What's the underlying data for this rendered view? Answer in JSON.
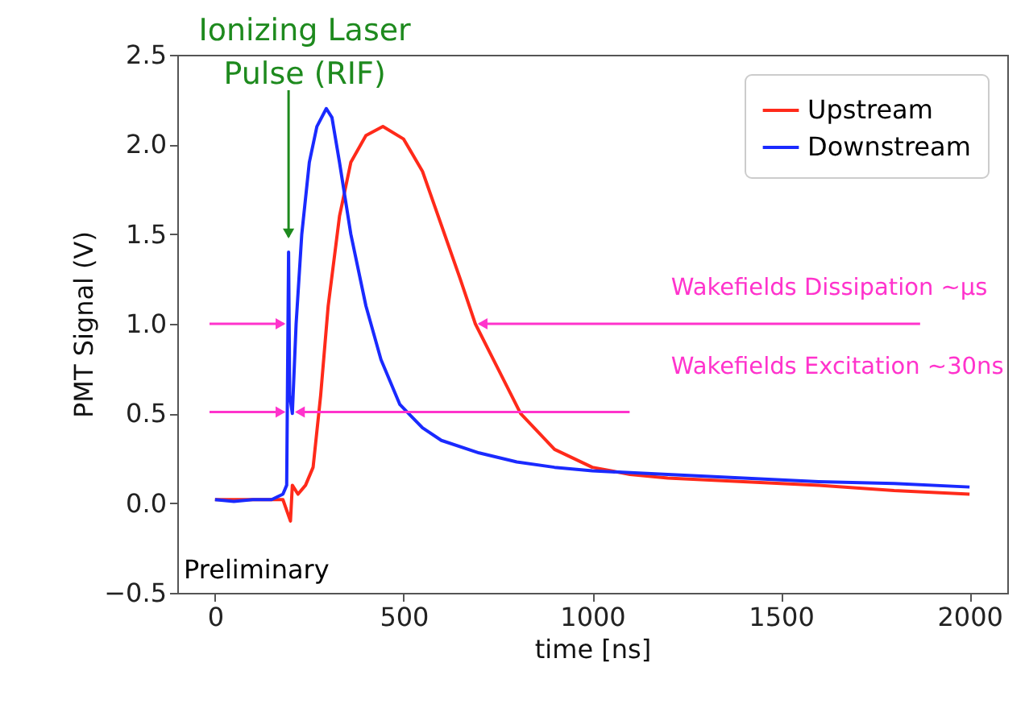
{
  "chart_data": {
    "type": "line",
    "xlabel": "time [ns]",
    "ylabel": "PMT Signal (V)",
    "xlim": [
      -100,
      2100
    ],
    "ylim": [
      -0.5,
      2.5
    ],
    "xticks": [
      0,
      500,
      1000,
      1500,
      2000
    ],
    "yticks": [
      {
        "value": -0.5,
        "label": "−0.5"
      },
      {
        "value": 0,
        "label": "0.0"
      },
      0.5,
      {
        "value": 1,
        "label": "1.0"
      },
      1.5,
      {
        "value": 2,
        "label": "2.0"
      },
      2.5
    ],
    "legend": "top right",
    "series": [
      {
        "name": "Upstream",
        "color": "#ff2a1a",
        "x": [
          0,
          100,
          180,
          200,
          205,
          220,
          240,
          260,
          280,
          300,
          330,
          360,
          400,
          445,
          500,
          550,
          600,
          650,
          690,
          750,
          810,
          900,
          1000,
          1100,
          1200,
          1400,
          1600,
          1800,
          2000
        ],
        "values": [
          0.02,
          0.02,
          0.02,
          -0.1,
          0.1,
          0.05,
          0.1,
          0.2,
          0.6,
          1.1,
          1.6,
          1.9,
          2.05,
          2.1,
          2.03,
          1.85,
          1.55,
          1.25,
          1.0,
          0.75,
          0.5,
          0.3,
          0.2,
          0.16,
          0.14,
          0.12,
          0.1,
          0.07,
          0.05
        ]
      },
      {
        "name": "Downstream",
        "color": "#1a2aff",
        "x": [
          0,
          50,
          100,
          150,
          180,
          190,
          195,
          198,
          205,
          215,
          230,
          250,
          270,
          295,
          310,
          330,
          360,
          400,
          440,
          490,
          550,
          600,
          700,
          800,
          900,
          1000,
          1200,
          1400,
          1600,
          1800,
          2000
        ],
        "values": [
          0.02,
          0.01,
          0.02,
          0.02,
          0.05,
          0.1,
          1.4,
          0.6,
          0.5,
          1.0,
          1.5,
          1.9,
          2.1,
          2.2,
          2.15,
          1.9,
          1.5,
          1.1,
          0.8,
          0.55,
          0.42,
          0.35,
          0.28,
          0.23,
          0.2,
          0.18,
          0.16,
          0.14,
          0.12,
          0.11,
          0.09
        ]
      }
    ],
    "annotations": [
      {
        "text": "Ionizing Laser\nPulse (RIF)",
        "x": 195,
        "y": 1.45
      },
      {
        "text": "Wakefields Dissipation ~µs",
        "x": 692,
        "y": 1.0
      },
      "Wakefields Excitation ~30ns",
      "Preliminary"
    ]
  }
}
